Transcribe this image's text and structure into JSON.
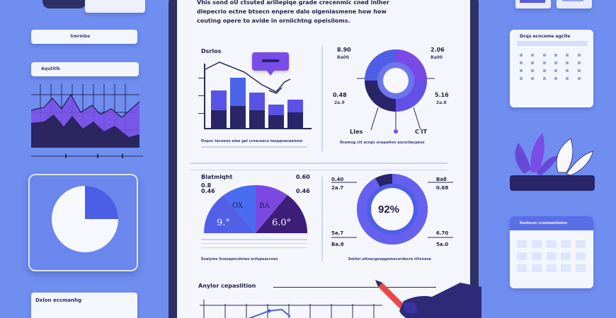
{
  "left_panel": {
    "card1_label": "Smrmbe",
    "card2_label": "Aqutitlk",
    "bottom_card_label": "Dxlon eccmanhg"
  },
  "header": {
    "line1": "Vhis sond oU ctsuted ariliepiqe grade crecenmic cned inlher",
    "line2": "dlepecrio ectne btsecn enpere dalo olgeniasmene how how",
    "line3": "couting opere to avide in orniichtng opeisiloms."
  },
  "top_left_chart": {
    "title": "Dsrlos",
    "caption": "Dvpnc tecoeno elee gel crneceeco teoppnecaeinne",
    "bar_heights_pct": [
      58,
      78,
      55,
      36,
      44
    ],
    "bar_top_heights_pct": [
      30,
      44,
      28,
      16,
      20
    ]
  },
  "top_right_ring": {
    "label_tl": "8.90",
    "label_tl2": "Ba00",
    "label_tr": "2.06",
    "label_tr2": "Ba00",
    "label_ml": "0.48",
    "label_ml2": "2a.9",
    "label_mr": "5.16",
    "label_mr2": "2a.8",
    "label_bl": "LIes",
    "label_br": "C IT",
    "caption": "Dcemsg ctt acnpc ecepatlon aocsrdacpeso"
  },
  "middle_left_gauge": {
    "title": "Blatmlqht",
    "label_tr": "0.60",
    "label_tr2": "0.46",
    "label_l": "0.8",
    "label_l2": "0.46",
    "seg1": "9.°",
    "seg2": "OX",
    "seg3": "BA",
    "seg4": "6.0°",
    "caption": "Eoalyms ltvesapncdoteo ecfupeaccoes"
  },
  "middle_right_donut": {
    "center_value": "92%",
    "progress_fraction": 0.92,
    "label_tl": "0.40",
    "label_tr": "Ba8",
    "label_ml": "2a.7",
    "label_mr": "0.68",
    "label_bl": "5a.7",
    "label_br": "6.70",
    "label_bl2": "Ba.8",
    "label_br2": "5a.0",
    "caption": "Emlioi uttoecgoepgemecurdecre tiiicnese"
  },
  "bottom_chart": {
    "title": "Anylor cepaslition"
  },
  "right_panel": {
    "calendar1_title": "Dcqs ecnceme agcite",
    "calendar2_title": "Eeotecm ccmmamtiaion"
  },
  "colors": {
    "background": "#6f8ef0",
    "accent_purple": "#7c4df0",
    "dark_navy": "#2a2468",
    "blue": "#4a64e8",
    "paper": "#f5f6fb"
  }
}
